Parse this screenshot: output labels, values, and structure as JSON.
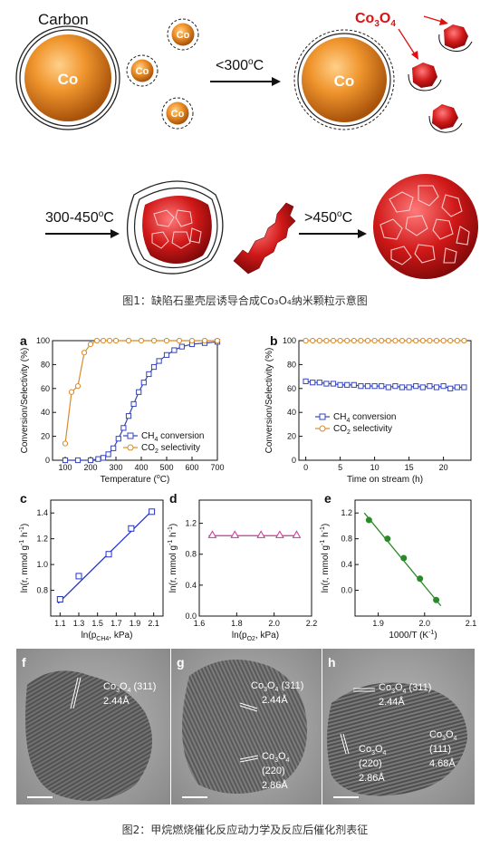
{
  "schematic": {
    "carbon_label": "Carbon",
    "co_label": "Co",
    "co3o4_label": "Co",
    "co3o4_sub1": "3",
    "co3o4_mid": "O",
    "co3o4_sub2": "4",
    "arrow1": "<300",
    "arrow1_unit": "o",
    "arrow1_c": "C",
    "arrow2": "300-450",
    "arrow2_unit": "o",
    "arrow2_c": "C",
    "arrow3": ">450",
    "arrow3_unit": "o",
    "arrow3_c": "C"
  },
  "figure1_caption": "图1：缺陷石墨壳层诱导合成Co₃O₄纳米颗粒示意图",
  "figure2_caption": "图2：甲烷燃烧催化反应动力学及反应后催化剂表征",
  "panels": {
    "a": "a",
    "b": "b",
    "c": "c",
    "d": "d",
    "e": "e",
    "f": "f",
    "g": "g",
    "h": "h"
  },
  "chart_data": [
    {
      "id": "a",
      "type": "line",
      "xlabel": "Temperature (°C)",
      "ylabel": "Conversion/Selectivity (%)",
      "xlim": [
        50,
        700
      ],
      "ylim": [
        0,
        100
      ],
      "xticks": [
        100,
        200,
        300,
        400,
        500,
        600,
        700
      ],
      "yticks": [
        0,
        20,
        40,
        60,
        80,
        100
      ],
      "legend": [
        "CH4 conversion",
        "CO2 selectivity"
      ],
      "legend_position": "bottom-right",
      "series": [
        {
          "name": "CH4 conversion",
          "color": "#3344bb",
          "marker": "square",
          "x": [
            100,
            150,
            200,
            230,
            250,
            270,
            290,
            310,
            330,
            350,
            370,
            390,
            410,
            430,
            450,
            470,
            500,
            530,
            560,
            600,
            650,
            700
          ],
          "y": [
            0,
            0,
            0,
            1,
            2,
            5,
            10,
            18,
            27,
            37,
            47,
            57,
            65,
            72,
            78,
            83,
            88,
            92,
            95,
            97,
            98,
            99
          ]
        },
        {
          "name": "CO2 selectivity",
          "color": "#d98a2b",
          "marker": "circle",
          "x": [
            100,
            125,
            150,
            175,
            200,
            225,
            250,
            275,
            300,
            350,
            400,
            450,
            500,
            550,
            600,
            650,
            700
          ],
          "y": [
            14,
            57,
            62,
            90,
            97,
            100,
            100,
            100,
            100,
            100,
            100,
            100,
            100,
            100,
            100,
            100,
            100
          ]
        }
      ]
    },
    {
      "id": "b",
      "type": "line",
      "xlabel": "Time on stream (h)",
      "ylabel": "Conversion/Selectivity (%)",
      "xlim": [
        -1,
        24
      ],
      "ylim": [
        0,
        100
      ],
      "xticks": [
        0,
        5,
        10,
        15,
        20
      ],
      "yticks": [
        0,
        20,
        40,
        60,
        80,
        100
      ],
      "legend": [
        "CH4 conversion",
        "CO2 selectivity"
      ],
      "legend_position": "bottom-center",
      "series": [
        {
          "name": "CH4 conversion",
          "color": "#3344bb",
          "marker": "square",
          "x": [
            0,
            1,
            2,
            3,
            4,
            5,
            6,
            7,
            8,
            9,
            10,
            11,
            12,
            13,
            14,
            15,
            16,
            17,
            18,
            19,
            20,
            21,
            22,
            23
          ],
          "y": [
            66,
            65,
            65,
            64,
            64,
            63,
            63,
            63,
            62,
            62,
            62,
            62,
            61,
            62,
            61,
            61,
            62,
            61,
            62,
            61,
            62,
            60,
            61,
            61
          ]
        },
        {
          "name": "CO2 selectivity",
          "color": "#d98a2b",
          "marker": "circle",
          "x": [
            0,
            1,
            2,
            3,
            4,
            5,
            6,
            7,
            8,
            9,
            10,
            11,
            12,
            13,
            14,
            15,
            16,
            17,
            18,
            19,
            20,
            21,
            22,
            23
          ],
          "y": [
            100,
            100,
            100,
            100,
            100,
            100,
            100,
            100,
            100,
            100,
            100,
            100,
            100,
            100,
            100,
            100,
            100,
            100,
            100,
            100,
            100,
            100,
            100,
            100
          ]
        }
      ]
    },
    {
      "id": "c",
      "type": "scatter",
      "xlabel": "ln(pCH4, kPa)",
      "ylabel": "ln(r, mmol g⁻¹ h⁻¹)",
      "xlim": [
        1.0,
        2.2
      ],
      "ylim": [
        0.6,
        1.5
      ],
      "xticks": [
        1.1,
        1.3,
        1.5,
        1.7,
        1.9,
        2.1
      ],
      "yticks": [
        0.8,
        1.0,
        1.2,
        1.4
      ],
      "series": [
        {
          "color": "#2233cc",
          "marker": "square",
          "x": [
            1.1,
            1.3,
            1.62,
            1.86,
            2.08
          ],
          "y": [
            0.73,
            0.91,
            1.08,
            1.28,
            1.41
          ]
        }
      ],
      "fit": {
        "x": [
          1.08,
          2.1
        ],
        "y": [
          0.7,
          1.43
        ]
      }
    },
    {
      "id": "d",
      "type": "scatter",
      "xlabel": "ln(pO2, kPa)",
      "ylabel": "ln(r, mmol g⁻¹ h⁻¹)",
      "xlim": [
        1.6,
        2.2
      ],
      "ylim": [
        0.0,
        1.5
      ],
      "xticks": [
        1.6,
        1.8,
        2.0,
        2.2
      ],
      "yticks": [
        0.0,
        0.4,
        0.8,
        1.2
      ],
      "series": [
        {
          "color": "#cc3399",
          "marker": "triangle",
          "x": [
            1.67,
            1.79,
            1.93,
            2.03,
            2.12
          ],
          "y": [
            1.05,
            1.05,
            1.05,
            1.05,
            1.05
          ]
        }
      ],
      "fit": {
        "x": [
          1.65,
          2.13
        ],
        "y": [
          1.04,
          1.04
        ]
      }
    },
    {
      "id": "e",
      "type": "scatter",
      "xlabel": "1000/T (K⁻¹)",
      "ylabel": "ln(r, mmol g⁻¹ h⁻¹)",
      "xlim": [
        1.85,
        2.1
      ],
      "ylim": [
        -0.4,
        1.4
      ],
      "xticks": [
        1.9,
        2.0,
        2.1
      ],
      "yticks": [
        0.0,
        0.4,
        0.8,
        1.2
      ],
      "series": [
        {
          "color": "#2a8a2a",
          "marker": "circle",
          "x": [
            1.88,
            1.92,
            1.955,
            1.99,
            2.025
          ],
          "y": [
            1.09,
            0.8,
            0.5,
            0.18,
            -0.15
          ]
        }
      ],
      "fit": {
        "x": [
          1.87,
          2.035
        ],
        "y": [
          1.2,
          -0.24
        ]
      }
    }
  ],
  "tem": {
    "f": {
      "label1": "Co",
      "sub1": "3",
      "mid": "O",
      "sub2": "4",
      "plane": "(311)",
      "d": "2.44Å"
    },
    "g": {
      "label1": "Co",
      "sub1": "3",
      "mid": "O",
      "sub2": "4",
      "plane": "(311)",
      "d": "2.44Å",
      "label2_plane": "(220)",
      "label2_d": "2.86Å"
    },
    "h": {
      "label1": "Co",
      "sub1": "3",
      "mid": "O",
      "sub2": "4",
      "plane": "(311)",
      "d": "2.44Å",
      "label2_plane": "(220)",
      "label2_d": "2.86Å",
      "label3_plane": "(111)",
      "label3_d": "4.68Å"
    }
  },
  "axis_tick_labels": {
    "a_x": [
      "100",
      "200",
      "300",
      "400",
      "500",
      "600",
      "700"
    ],
    "a_y": [
      "0",
      "20",
      "40",
      "60",
      "80",
      "100"
    ],
    "b_x": [
      "0",
      "5",
      "10",
      "15",
      "20"
    ],
    "b_y": [
      "0",
      "20",
      "40",
      "60",
      "80",
      "100"
    ],
    "c_x": [
      "1.1",
      "1.3",
      "1.5",
      "1.7",
      "1.9",
      "2.1"
    ],
    "c_y": [
      "0.8",
      "1.0",
      "1.2",
      "1.4"
    ],
    "d_x": [
      "1.6",
      "1.8",
      "2.0",
      "2.2"
    ],
    "d_y": [
      "0.0",
      "0.4",
      "0.8",
      "1.2"
    ],
    "e_x": [
      "1.9",
      "2.0",
      "2.1"
    ],
    "e_y": [
      "0.0",
      "0.4",
      "0.8",
      "1.2"
    ]
  },
  "axis_titles": {
    "a_x_pre": "Temperature (",
    "a_x_sup": "o",
    "a_x_post": "C)",
    "ab_y": "Conversion/Selectivity (%)",
    "b_x": "Time on stream (h)",
    "c_x_pre": "ln(p",
    "c_x_sub": "CH4",
    "c_x_post": ", kPa)",
    "d_x_pre": "ln(p",
    "d_x_sub": "O2",
    "d_x_post": ", kPa)",
    "e_x_pre": "1000/T (K",
    "e_x_sup": "-1",
    "e_x_post": ")",
    "cde_y_pre": "ln(r, mmol g",
    "cde_y_sup1": "-1",
    "cde_y_mid": " h",
    "cde_y_sup2": "-1",
    "cde_y_post": ")",
    "legend_ch4_pre": "CH",
    "legend_ch4_sub": "4",
    "legend_ch4_post": " conversion",
    "legend_co2_pre": "CO",
    "legend_co2_sub": "2",
    "legend_co2_post": " selectivity"
  },
  "colors": {
    "co_orange": "#e8892a",
    "co_dark": "#b45f10",
    "red": "#cc1a1a",
    "blue": "#3344bb",
    "orange_series": "#d98a2b"
  }
}
